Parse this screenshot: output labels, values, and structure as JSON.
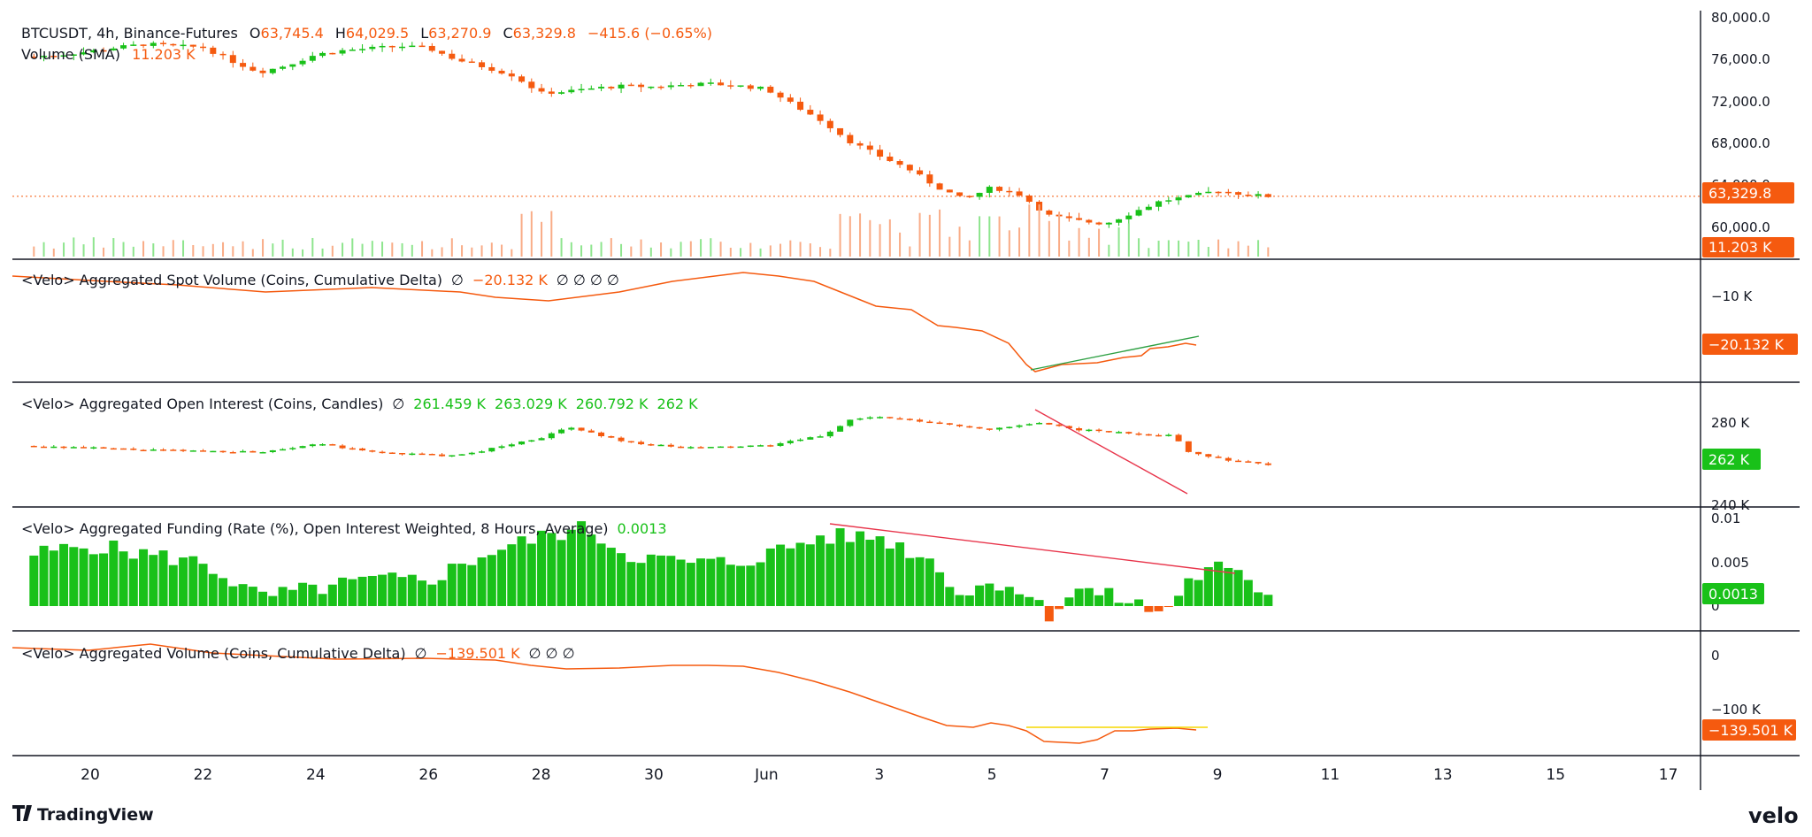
{
  "colors": {
    "up": "#19c119",
    "down": "#f55a0f",
    "price_line": "#f55a0f",
    "trend_green": "#2ea043",
    "trend_red": "#e8354b",
    "trend_yellow": "#f5d800",
    "text": "#131722",
    "border": "#131722"
  },
  "header": {
    "symbol": "BTCUSDT, 4h, Binance-Futures",
    "o_label": "O",
    "o_value": "63,745.4",
    "h_label": "H",
    "h_value": "64,029.5",
    "l_label": "L",
    "l_value": "63,270.9",
    "c_label": "C",
    "c_value": "63,329.8",
    "change": "−415.6 (−0.65%)",
    "volume_label": "Volume (SMA)",
    "volume_value": "11.203 K"
  },
  "panes": {
    "spot": {
      "title": "<Velo> Aggregated Spot Volume (Coins, Cumulative Delta)",
      "empty1": "∅",
      "value": "−20.132 K",
      "rest": "∅  ∅  ∅  ∅",
      "tag": "−20.132 K",
      "tick": "−10 K"
    },
    "oi": {
      "title": "<Velo> Aggregated Open Interest (Coins, Candles)",
      "empty1": "∅",
      "o": "261.459 K",
      "h": "263.029 K",
      "l": "260.792 K",
      "c": "262 K",
      "tag": "262 K",
      "ticks": [
        "280 K",
        "240 K"
      ]
    },
    "funding": {
      "title": "<Velo> Aggregated Funding (Rate (%), Open Interest Weighted, 8 Hours, Average)",
      "value": "0.0013",
      "tag": "0.0013",
      "ticks": [
        "0.01",
        "0.005",
        "0"
      ]
    },
    "volume": {
      "title": "<Velo> Aggregated Volume (Coins, Cumulative Delta)",
      "empty1": "∅",
      "value": "−139.501 K",
      "rest": "∅  ∅  ∅",
      "tag": "−139.501 K",
      "ticks": [
        "0",
        "−100 K"
      ]
    }
  },
  "price_axis": {
    "ticks": [
      "80,000.0",
      "76,000.0",
      "72,000.0",
      "68,000.0",
      "64,000.0",
      "60,000.0"
    ],
    "last_price_tag": "63,329.8",
    "volume_tag": "11.203 K"
  },
  "x_axis": {
    "labels": [
      "20",
      "22",
      "24",
      "26",
      "28",
      "30",
      "Jun",
      "3",
      "5",
      "7",
      "9",
      "11",
      "13",
      "15",
      "17"
    ]
  },
  "branding": {
    "left": "TradingView",
    "right": "velo"
  },
  "chart_data": [
    {
      "type": "candlestick",
      "title": "BTCUSDT, 4h, Binance-Futures",
      "x": "date (May 19 – Jun 8, 4h bars)",
      "ylim": [
        58000,
        80000
      ],
      "last": {
        "open": 63745.4,
        "high": 64029.5,
        "low": 63270.9,
        "close": 63329.8
      },
      "close_path": [
        [
          19.0,
          76700
        ],
        [
          19.5,
          76900
        ],
        [
          20.0,
          77200
        ],
        [
          20.5,
          77600
        ],
        [
          21.0,
          77900
        ],
        [
          21.5,
          77700
        ],
        [
          22.0,
          77600
        ],
        [
          22.5,
          76300
        ],
        [
          23.0,
          75200
        ],
        [
          23.5,
          75900
        ],
        [
          24.0,
          76900
        ],
        [
          24.5,
          77300
        ],
        [
          25.0,
          77500
        ],
        [
          25.5,
          77700
        ],
        [
          26.0,
          77500
        ],
        [
          26.5,
          76400
        ],
        [
          27.0,
          75700
        ],
        [
          27.5,
          74900
        ],
        [
          28.0,
          73200
        ],
        [
          28.5,
          73400
        ],
        [
          29.0,
          73700
        ],
        [
          29.5,
          73900
        ],
        [
          30.0,
          73800
        ],
        [
          30.5,
          74000
        ],
        [
          31.0,
          74100
        ],
        [
          31.5,
          73900
        ],
        [
          32.0,
          73600
        ],
        [
          32.5,
          72000
        ],
        [
          33.0,
          70500
        ],
        [
          33.5,
          68500
        ],
        [
          34.0,
          67200
        ],
        [
          34.5,
          66000
        ],
        [
          35.0,
          64300
        ],
        [
          35.5,
          63000
        ],
        [
          36.0,
          64200
        ],
        [
          36.5,
          63500
        ],
        [
          37.0,
          61500
        ],
        [
          37.5,
          61000
        ],
        [
          38.0,
          60700
        ],
        [
          38.5,
          61800
        ],
        [
          39.0,
          62900
        ],
        [
          39.5,
          63300
        ],
        [
          40.0,
          63900
        ],
        [
          40.5,
          63500
        ],
        [
          40.9,
          63330
        ]
      ]
    },
    {
      "type": "bar",
      "title": "Volume (SMA)",
      "last": "11.203 K"
    },
    {
      "type": "line",
      "title": "<Velo> Aggregated Spot Volume (Coins, Cumulative Delta)",
      "unit": "K",
      "last": -20.132
    },
    {
      "type": "candlestick",
      "title": "<Velo> Aggregated Open Interest (Coins, Candles)",
      "unit": "K",
      "ylim": [
        240,
        300
      ],
      "last": {
        "open": 261.459,
        "high": 263.029,
        "low": 260.792,
        "close": 262
      }
    },
    {
      "type": "bar",
      "title": "<Velo> Aggregated Funding (Rate (%), Open Interest Weighted, 8 Hours, Average)",
      "ylim": [
        -0.002,
        0.01
      ],
      "last": 0.0013
    },
    {
      "type": "line",
      "title": "<Velo> Aggregated Volume (Coins, Cumulative Delta)",
      "unit": "K",
      "ylim": [
        -150,
        0
      ],
      "last": -139.501
    }
  ]
}
